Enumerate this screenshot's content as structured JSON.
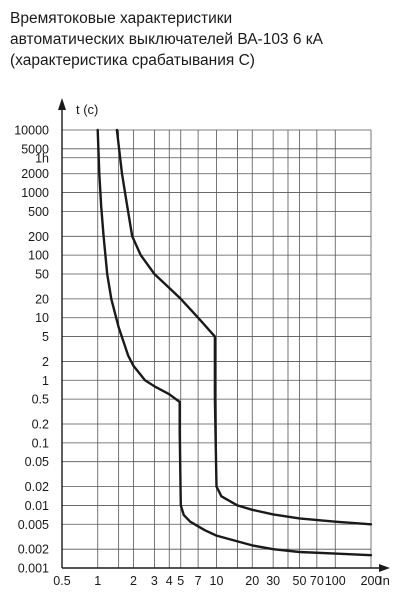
{
  "chart_data": {
    "type": "line",
    "title_lines": [
      "Времятоковые характеристики",
      "автоматических выключателей ВА-103 6 кА",
      "(характеристика срабатывания С)"
    ],
    "xlabel": "In",
    "ylabel": "t (c)",
    "x_scale": "log",
    "y_scale": "log",
    "xlim": [
      0.5,
      200
    ],
    "ylim": [
      0.001,
      10000
    ],
    "grid": true,
    "x_ticks": [
      {
        "v": 0.5,
        "label": "0.5"
      },
      {
        "v": 1,
        "label": "1"
      },
      {
        "v": 2,
        "label": "2"
      },
      {
        "v": 3,
        "label": "3"
      },
      {
        "v": 4,
        "label": "4"
      },
      {
        "v": 5,
        "label": "5"
      },
      {
        "v": 7,
        "label": "7"
      },
      {
        "v": 10,
        "label": "10"
      },
      {
        "v": 20,
        "label": "20"
      },
      {
        "v": 30,
        "label": "30"
      },
      {
        "v": 50,
        "label": "50"
      },
      {
        "v": 70,
        "label": "70"
      },
      {
        "v": 100,
        "label": "100"
      },
      {
        "v": 200,
        "label": "200"
      }
    ],
    "x_gridlines": [
      1,
      1.5,
      2,
      3,
      4,
      5,
      7,
      10,
      15,
      20,
      30,
      40,
      50,
      70,
      100,
      200
    ],
    "y_ticks": [
      {
        "v": 10000,
        "label": "10000"
      },
      {
        "v": 5000,
        "label": "5000"
      },
      {
        "v": 3600,
        "label": "1h"
      },
      {
        "v": 2000,
        "label": "2000"
      },
      {
        "v": 1000,
        "label": "1000"
      },
      {
        "v": 500,
        "label": "500"
      },
      {
        "v": 200,
        "label": "200"
      },
      {
        "v": 100,
        "label": "100"
      },
      {
        "v": 50,
        "label": "50"
      },
      {
        "v": 20,
        "label": "20"
      },
      {
        "v": 10,
        "label": "10"
      },
      {
        "v": 5,
        "label": "5"
      },
      {
        "v": 2,
        "label": "2"
      },
      {
        "v": 1,
        "label": "1"
      },
      {
        "v": 0.5,
        "label": "0.5"
      },
      {
        "v": 0.2,
        "label": "0.2"
      },
      {
        "v": 0.1,
        "label": "0.1"
      },
      {
        "v": 0.05,
        "label": "0.05"
      },
      {
        "v": 0.02,
        "label": "0.02"
      },
      {
        "v": 0.01,
        "label": "0.01"
      },
      {
        "v": 0.005,
        "label": "0.005"
      },
      {
        "v": 0.002,
        "label": "0.002"
      },
      {
        "v": 0.001,
        "label": "0.001"
      }
    ],
    "series": [
      {
        "name": "",
        "color": "#1a1a1a",
        "points": [
          [
            1.0,
            10000
          ],
          [
            1.03,
            2000
          ],
          [
            1.07,
            600
          ],
          [
            1.12,
            200
          ],
          [
            1.2,
            50
          ],
          [
            1.3,
            20
          ],
          [
            1.5,
            7
          ],
          [
            1.8,
            2.5
          ],
          [
            2.0,
            1.7
          ],
          [
            2.5,
            1.0
          ],
          [
            3.0,
            0.8
          ],
          [
            4.0,
            0.6
          ],
          [
            4.9,
            0.45
          ],
          [
            4.9,
            0.15
          ],
          [
            5.0,
            0.01
          ],
          [
            5.3,
            0.007
          ],
          [
            6.0,
            0.0055
          ],
          [
            8.0,
            0.004
          ],
          [
            10.0,
            0.0033
          ],
          [
            20.0,
            0.0023
          ],
          [
            30.0,
            0.002
          ],
          [
            50.0,
            0.0018
          ],
          [
            100.0,
            0.0017
          ],
          [
            200.0,
            0.0016
          ]
        ]
      },
      {
        "name": "",
        "color": "#1a1a1a",
        "points": [
          [
            1.45,
            10000
          ],
          [
            1.6,
            2000
          ],
          [
            1.75,
            700
          ],
          [
            1.95,
            200
          ],
          [
            2.3,
            100
          ],
          [
            3.0,
            50
          ],
          [
            4.0,
            30
          ],
          [
            5.0,
            20
          ],
          [
            7.0,
            10
          ],
          [
            9.7,
            5.0
          ],
          [
            9.7,
            0.5
          ],
          [
            10.0,
            0.02
          ],
          [
            11.0,
            0.014
          ],
          [
            15.0,
            0.01
          ],
          [
            20.0,
            0.0085
          ],
          [
            30.0,
            0.0072
          ],
          [
            50.0,
            0.0062
          ],
          [
            100.0,
            0.0055
          ],
          [
            200.0,
            0.005
          ]
        ]
      }
    ]
  }
}
